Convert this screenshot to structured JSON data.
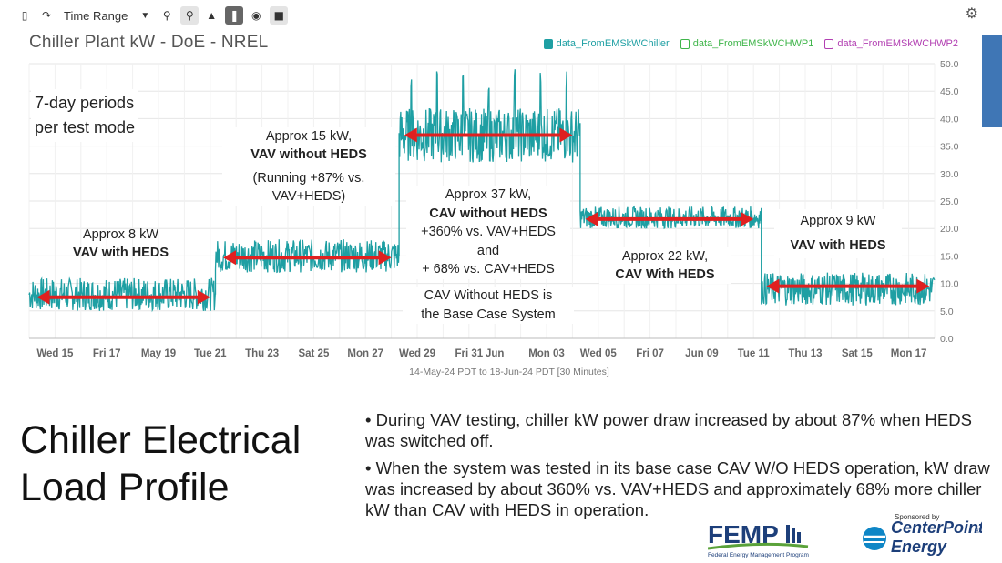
{
  "toolbar": {
    "time_range_label": "Time Range"
  },
  "chart": {
    "title": "Chiller Plant kW - DoE - NREL",
    "legend": [
      {
        "name": "data_FromEMSkWChiller",
        "color": "#1e9fa3",
        "filled": true
      },
      {
        "name": "data_FromEMSkWCHWP1",
        "color": "#3fb54a",
        "filled": false
      },
      {
        "name": "data_FromEMSkWCHWP2",
        "color": "#b23fb2",
        "filled": false
      }
    ],
    "date_range_label": "14-May-24 PDT to 18-Jun-24 PDT  [30 Minutes]"
  },
  "annotations": {
    "periods": "7-day periods\nper test mode",
    "vav_heds_1_line1": "Approx 8 kW",
    "vav_heds_1_line2": "VAV with HEDS",
    "vav_no_heds_line1": "Approx 15 kW,",
    "vav_no_heds_line2": "VAV without HEDS",
    "vav_no_heds_line3": "(Running +87% vs.",
    "vav_no_heds_line4": "VAV+HEDS)",
    "cav_no_heds_line1": "Approx 37 kW,",
    "cav_no_heds_line2": "CAV without HEDS",
    "cav_no_heds_line3": "+360% vs. VAV+HEDS",
    "cav_no_heds_line4": "and",
    "cav_no_heds_line5": "+ 68% vs. CAV+HEDS",
    "base_case_line1": "CAV Without HEDS is",
    "base_case_line2": "the Base Case System",
    "cav_heds_line1": "Approx 22 kW,",
    "cav_heds_line2": "CAV With HEDS",
    "vav_heds_2_line1": "Approx 9 kW",
    "vav_heds_2_line2": "VAV with HEDS"
  },
  "slide": {
    "title_line1": "Chiller Electrical",
    "title_line2": "Load Profile",
    "bullet1": "•  During VAV testing, chiller kW power draw increased by about 87% when HEDS was switched off.",
    "bullet2": "•  When the system was tested in its base case CAV W/O HEDS operation, kW draw was increased by about 360% vs. VAV+HEDS and approximately 68% more chiller kW than CAV with HEDS in operation."
  },
  "logos": {
    "fem_text": "FEMP",
    "fem_sub": "Federal Energy Management Program",
    "cp_top": "Sponsored by",
    "cp_name": "CenterPoint.",
    "cp_energy": "Energy"
  },
  "chart_data": {
    "type": "line",
    "title": "Chiller Plant kW - DoE - NREL",
    "xlabel": "14-May-24 PDT to 18-Jun-24 PDT  [30 Minutes]",
    "ylabel": "",
    "ylim": [
      0,
      50
    ],
    "y_ticks": [
      "0.0",
      "5.0",
      "10.0",
      "15.0",
      "20.0",
      "25.0",
      "30.0",
      "35.0",
      "40.0",
      "45.0",
      "50.0"
    ],
    "x_ticks": [
      "Wed 15",
      "Fri 17",
      "May 19",
      "Tue 21",
      "Thu 23",
      "Sat 25",
      "Mon 27",
      "Wed 29",
      "Fri 31",
      "Jun",
      "Mon 03",
      "Wed 05",
      "Fri 07",
      "Jun 09",
      "Tue 11",
      "Thu 13",
      "Sat 15",
      "Mon 17"
    ],
    "x_tick_days": [
      1,
      3,
      5,
      7,
      9,
      11,
      13,
      15,
      17,
      18,
      20,
      22,
      24,
      26,
      28,
      30,
      32,
      34
    ],
    "x_range_days": [
      0,
      35
    ],
    "series": [
      {
        "name": "data_FromEMSkWChiller",
        "color": "#1e9fa3",
        "segments": [
          {
            "start_day": 0.0,
            "end_day": 7.2,
            "mean_kW": 8,
            "noise_kW": 3
          },
          {
            "start_day": 7.2,
            "end_day": 14.3,
            "mean_kW": 15,
            "noise_kW": 3
          },
          {
            "start_day": 14.3,
            "end_day": 21.3,
            "mean_kW": 37,
            "noise_kW": 5,
            "peaks_kW": 49
          },
          {
            "start_day": 21.3,
            "end_day": 28.3,
            "mean_kW": 22,
            "noise_kW": 2
          },
          {
            "start_day": 28.3,
            "end_day": 35.0,
            "mean_kW": 9,
            "noise_kW": 3
          }
        ]
      }
    ],
    "arrows": [
      {
        "from_day": 0.3,
        "to_day": 7.0,
        "kW": 7.5
      },
      {
        "from_day": 7.5,
        "to_day": 14.0,
        "kW": 14.7
      },
      {
        "from_day": 14.5,
        "to_day": 21.0,
        "kW": 37.0
      },
      {
        "from_day": 21.5,
        "to_day": 28.0,
        "kW": 21.7
      },
      {
        "from_day": 28.5,
        "to_day": 34.8,
        "kW": 9.5
      }
    ]
  }
}
